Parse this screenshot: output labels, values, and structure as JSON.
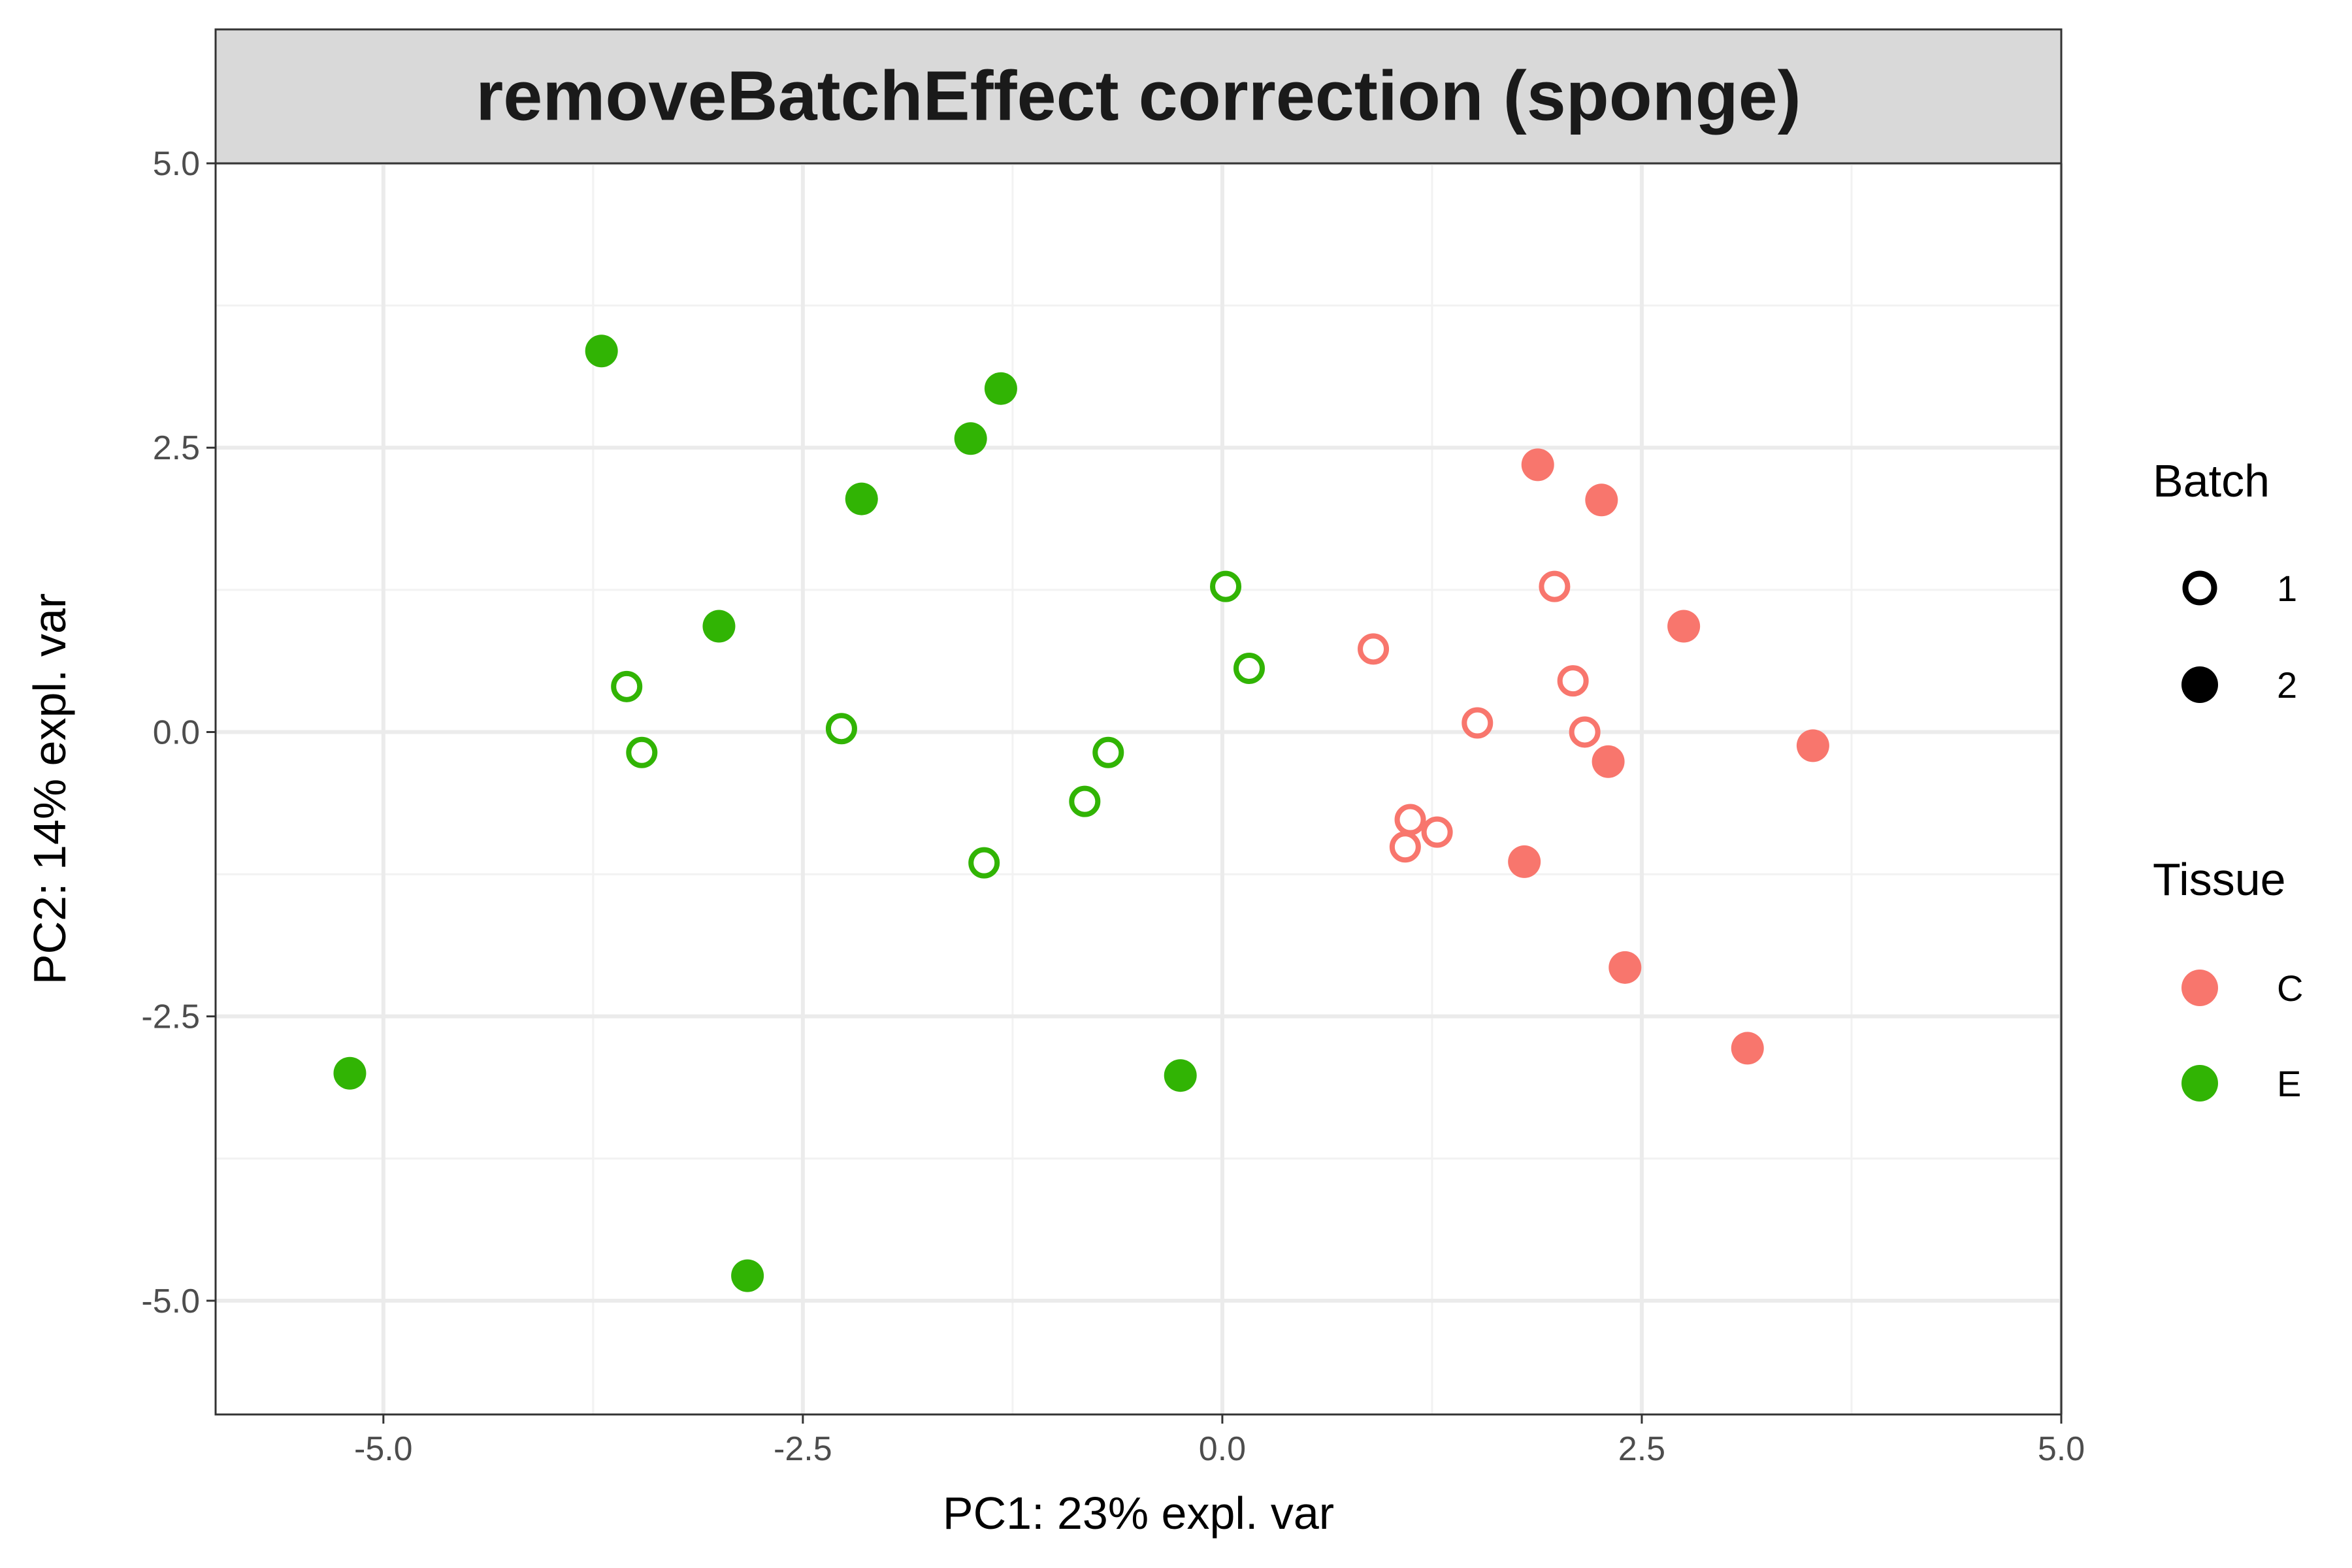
{
  "chart_data": {
    "type": "scatter",
    "title": "removeBatchEffect correction (sponge)",
    "xlabel": "PC1: 23% expl. var",
    "ylabel": "PC2: 14% expl. var",
    "xlim": [
      -6.0,
      5.0
    ],
    "ylim": [
      -6.0,
      5.0
    ],
    "x_ticks": [
      -5.0,
      -2.5,
      0.0,
      2.5,
      5.0
    ],
    "y_ticks": [
      -5.0,
      -2.5,
      0.0,
      2.5,
      5.0
    ],
    "x_tick_labels": [
      "-5.0",
      "-2.5",
      "0.0",
      "2.5",
      "5.0"
    ],
    "y_tick_labels": [
      "-5.0",
      "-2.5",
      "0.0",
      "2.5",
      "5.0"
    ],
    "grid": true,
    "legend_placement": "right",
    "legends": {
      "batch": {
        "title": "Batch",
        "items": [
          {
            "label": "1",
            "shape": "open-circle"
          },
          {
            "label": "2",
            "shape": "filled-circle"
          }
        ]
      },
      "tissue": {
        "title": "Tissue",
        "items": [
          {
            "label": "C",
            "color": "#F8766D"
          },
          {
            "label": "E",
            "color": "#31B404"
          }
        ]
      }
    },
    "colors": {
      "C": "#F8766D",
      "E": "#31B404"
    },
    "points": [
      {
        "x": -3.7,
        "y": 3.35,
        "tissue": "E",
        "batch": "2"
      },
      {
        "x": -1.32,
        "y": 3.02,
        "tissue": "E",
        "batch": "2"
      },
      {
        "x": -1.5,
        "y": 2.58,
        "tissue": "E",
        "batch": "2"
      },
      {
        "x": -2.15,
        "y": 2.05,
        "tissue": "E",
        "batch": "2"
      },
      {
        "x": -3.0,
        "y": 0.93,
        "tissue": "E",
        "batch": "2"
      },
      {
        "x": -5.2,
        "y": -3.0,
        "tissue": "E",
        "batch": "2"
      },
      {
        "x": -2.83,
        "y": -4.78,
        "tissue": "E",
        "batch": "2"
      },
      {
        "x": -0.25,
        "y": -3.02,
        "tissue": "E",
        "batch": "2"
      },
      {
        "x": 0.02,
        "y": 1.28,
        "tissue": "E",
        "batch": "1"
      },
      {
        "x": 0.16,
        "y": 0.56,
        "tissue": "E",
        "batch": "1"
      },
      {
        "x": -3.55,
        "y": 0.4,
        "tissue": "E",
        "batch": "1"
      },
      {
        "x": -3.46,
        "y": -0.18,
        "tissue": "E",
        "batch": "1"
      },
      {
        "x": -2.27,
        "y": 0.03,
        "tissue": "E",
        "batch": "1"
      },
      {
        "x": -0.68,
        "y": -0.18,
        "tissue": "E",
        "batch": "1"
      },
      {
        "x": -0.82,
        "y": -0.61,
        "tissue": "E",
        "batch": "1"
      },
      {
        "x": -1.42,
        "y": -1.15,
        "tissue": "E",
        "batch": "1"
      },
      {
        "x": 1.88,
        "y": 2.35,
        "tissue": "C",
        "batch": "2"
      },
      {
        "x": 2.26,
        "y": 2.04,
        "tissue": "C",
        "batch": "2"
      },
      {
        "x": 2.75,
        "y": 0.93,
        "tissue": "C",
        "batch": "2"
      },
      {
        "x": 3.52,
        "y": -0.12,
        "tissue": "C",
        "batch": "2"
      },
      {
        "x": 2.3,
        "y": -0.26,
        "tissue": "C",
        "batch": "2"
      },
      {
        "x": 1.8,
        "y": -1.14,
        "tissue": "C",
        "batch": "2"
      },
      {
        "x": 2.4,
        "y": -2.07,
        "tissue": "C",
        "batch": "2"
      },
      {
        "x": 3.13,
        "y": -2.78,
        "tissue": "C",
        "batch": "2"
      },
      {
        "x": 1.98,
        "y": 1.28,
        "tissue": "C",
        "batch": "1"
      },
      {
        "x": 0.9,
        "y": 0.73,
        "tissue": "C",
        "batch": "1"
      },
      {
        "x": 2.09,
        "y": 0.45,
        "tissue": "C",
        "batch": "1"
      },
      {
        "x": 1.52,
        "y": 0.08,
        "tissue": "C",
        "batch": "1"
      },
      {
        "x": 2.16,
        "y": 0.0,
        "tissue": "C",
        "batch": "1"
      },
      {
        "x": 1.12,
        "y": -0.77,
        "tissue": "C",
        "batch": "1"
      },
      {
        "x": 1.28,
        "y": -0.88,
        "tissue": "C",
        "batch": "1"
      },
      {
        "x": 1.09,
        "y": -1.01,
        "tissue": "C",
        "batch": "1"
      }
    ]
  }
}
